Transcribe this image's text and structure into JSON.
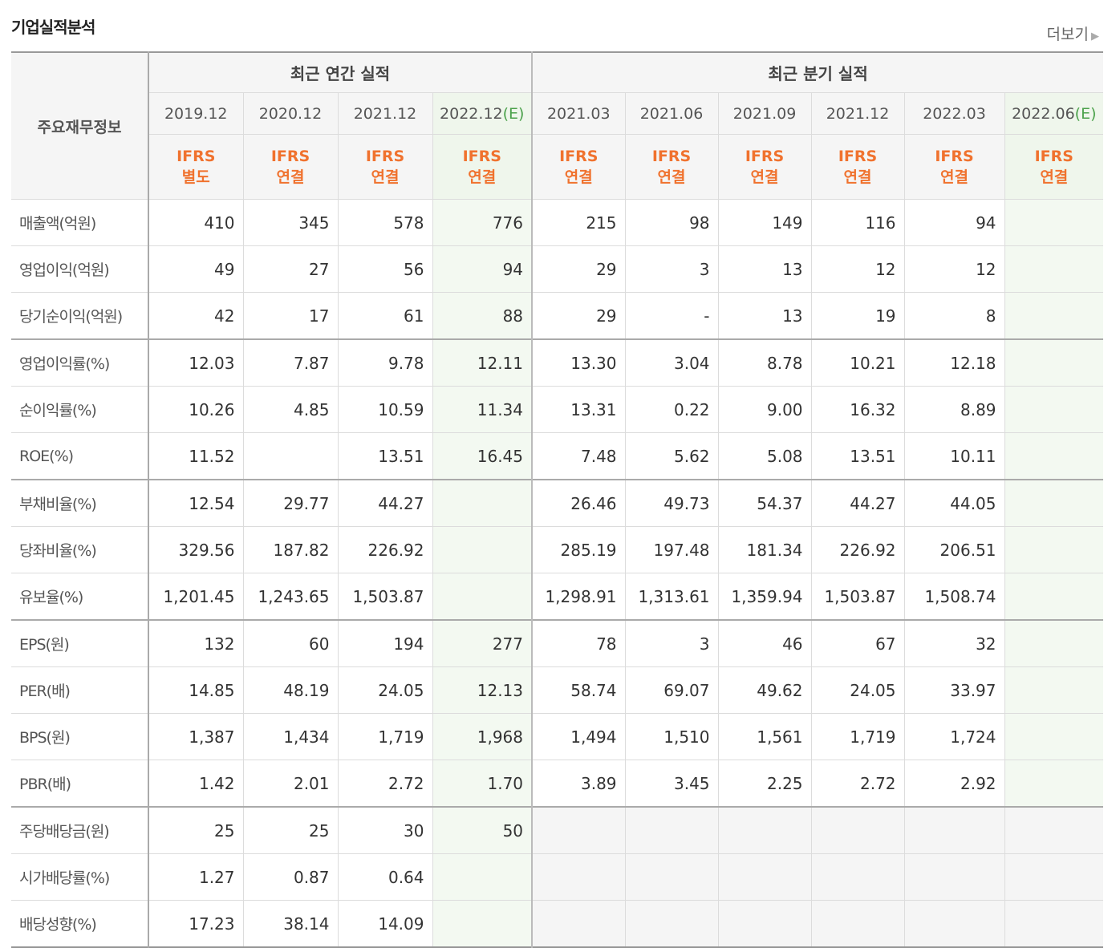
{
  "header": {
    "title": "기업실적분석",
    "more": "더보기"
  },
  "table": {
    "row_header": "주요재무정보",
    "groups": [
      "최근 연간 실적",
      "최근 분기 실적"
    ],
    "columns": [
      {
        "period": "2019.12",
        "standard": "IFRS",
        "basis": "별도"
      },
      {
        "period": "2020.12",
        "standard": "IFRS",
        "basis": "연결"
      },
      {
        "period": "2021.12",
        "standard": "IFRS",
        "basis": "연결"
      },
      {
        "period": "2022.12",
        "estimate": "(E)",
        "standard": "IFRS",
        "basis": "연결"
      },
      {
        "period": "2021.03",
        "standard": "IFRS",
        "basis": "연결"
      },
      {
        "period": "2021.06",
        "standard": "IFRS",
        "basis": "연결"
      },
      {
        "period": "2021.09",
        "standard": "IFRS",
        "basis": "연결"
      },
      {
        "period": "2021.12",
        "standard": "IFRS",
        "basis": "연결"
      },
      {
        "period": "2022.03",
        "standard": "IFRS",
        "basis": "연결"
      },
      {
        "period": "2022.06",
        "estimate": "(E)",
        "standard": "IFRS",
        "basis": "연결"
      }
    ],
    "rows": [
      {
        "label": "매출액(억원)",
        "values": [
          "410",
          "345",
          "578",
          "776",
          "215",
          "98",
          "149",
          "116",
          "94",
          null
        ]
      },
      {
        "label": "영업이익(억원)",
        "values": [
          "49",
          "27",
          "56",
          "94",
          "29",
          "3",
          "13",
          "12",
          "12",
          null
        ]
      },
      {
        "label": "당기순이익(억원)",
        "values": [
          "42",
          "17",
          "61",
          "88",
          "29",
          "-",
          "13",
          "19",
          "8",
          null
        ]
      },
      {
        "label": "영업이익률(%)",
        "values": [
          "12.03",
          "7.87",
          "9.78",
          "12.11",
          "13.30",
          "3.04",
          "8.78",
          "10.21",
          "12.18",
          null
        ]
      },
      {
        "label": "순이익률(%)",
        "values": [
          "10.26",
          "4.85",
          "10.59",
          "11.34",
          "13.31",
          "0.22",
          "9.00",
          "16.32",
          "8.89",
          null
        ]
      },
      {
        "label": "ROE(%)",
        "values": [
          "11.52",
          null,
          "13.51",
          "16.45",
          "7.48",
          "5.62",
          "5.08",
          "13.51",
          "10.11",
          null
        ]
      },
      {
        "label": "부채비율(%)",
        "values": [
          "12.54",
          "29.77",
          "44.27",
          null,
          "26.46",
          "49.73",
          "54.37",
          "44.27",
          "44.05",
          null
        ]
      },
      {
        "label": "당좌비율(%)",
        "values": [
          "329.56",
          "187.82",
          "226.92",
          null,
          "285.19",
          "197.48",
          "181.34",
          "226.92",
          "206.51",
          null
        ]
      },
      {
        "label": "유보율(%)",
        "values": [
          "1,201.45",
          "1,243.65",
          "1,503.87",
          null,
          "1,298.91",
          "1,313.61",
          "1,359.94",
          "1,503.87",
          "1,508.74",
          null
        ]
      },
      {
        "label": "EPS(원)",
        "values": [
          "132",
          "60",
          "194",
          "277",
          "78",
          "3",
          "46",
          "67",
          "32",
          null
        ]
      },
      {
        "label": "PER(배)",
        "values": [
          "14.85",
          "48.19",
          "24.05",
          "12.13",
          "58.74",
          "69.07",
          "49.62",
          "24.05",
          "33.97",
          null
        ]
      },
      {
        "label": "BPS(원)",
        "values": [
          "1,387",
          "1,434",
          "1,719",
          "1,968",
          "1,494",
          "1,510",
          "1,561",
          "1,719",
          "1,724",
          null
        ]
      },
      {
        "label": "PBR(배)",
        "values": [
          "1.42",
          "2.01",
          "2.72",
          "1.70",
          "3.89",
          "3.45",
          "2.25",
          "2.72",
          "2.92",
          null
        ]
      },
      {
        "label": "주당배당금(원)",
        "values": [
          "25",
          "25",
          "30",
          "50",
          null,
          null,
          null,
          null,
          null,
          null
        ]
      },
      {
        "label": "시가배당률(%)",
        "values": [
          "1.27",
          "0.87",
          "0.64",
          null,
          null,
          null,
          null,
          null,
          null,
          null
        ]
      },
      {
        "label": "배당성향(%)",
        "values": [
          "17.23",
          "38.14",
          "14.09",
          null,
          null,
          null,
          null,
          null,
          null,
          null
        ]
      }
    ]
  }
}
